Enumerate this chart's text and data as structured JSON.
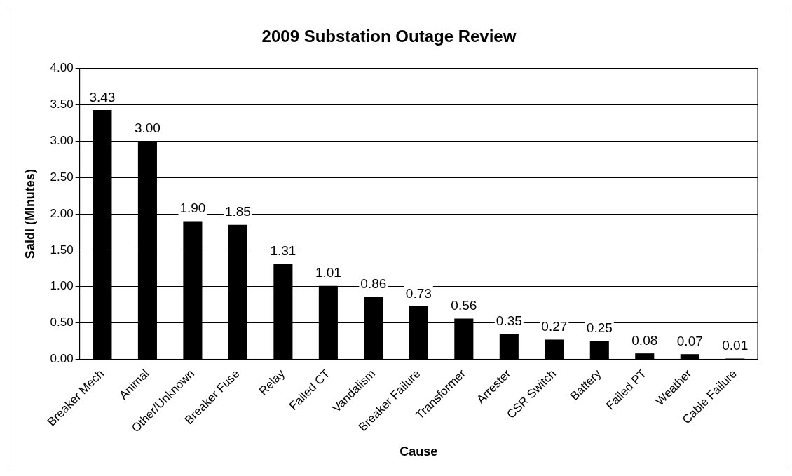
{
  "chart_data": {
    "type": "bar",
    "title": "2009 Substation Outage Review",
    "xlabel": "Cause",
    "ylabel": "Saidi (Minutes)",
    "categories": [
      "Breaker Mech",
      "Animal",
      "Other/Unknown",
      "Breaker Fuse",
      "Relay",
      "Failed CT",
      "Vandalism",
      "Breaker Failure",
      "Transformer",
      "Arrester",
      "CSR Switch",
      "Battery",
      "Failed PT",
      "Weather",
      "Cable Failure"
    ],
    "values": [
      3.43,
      3.0,
      1.9,
      1.85,
      1.31,
      1.01,
      0.86,
      0.73,
      0.56,
      0.35,
      0.27,
      0.25,
      0.08,
      0.07,
      0.01
    ],
    "value_labels": [
      "3.43",
      "3.00",
      "1.90",
      "1.85",
      "1.31",
      "1.01",
      "0.86",
      "0.73",
      "0.56",
      "0.35",
      "0.27",
      "0.25",
      "0.08",
      "0.07",
      "0.01"
    ],
    "color": "#000000",
    "ylim": [
      0,
      4
    ],
    "yticks": [
      {
        "value": 0,
        "label": "0.00"
      },
      {
        "value": 0.5,
        "label": "0.50"
      },
      {
        "value": 1,
        "label": "1.00"
      },
      {
        "value": 1.5,
        "label": "1.50"
      },
      {
        "value": 2,
        "label": "2.00"
      },
      {
        "value": 2.5,
        "label": "2.50"
      },
      {
        "value": 3,
        "label": "3.00"
      },
      {
        "value": 3.5,
        "label": "3.50"
      },
      {
        "value": 4,
        "label": "4.00"
      }
    ],
    "grid": "y",
    "legend": false
  }
}
